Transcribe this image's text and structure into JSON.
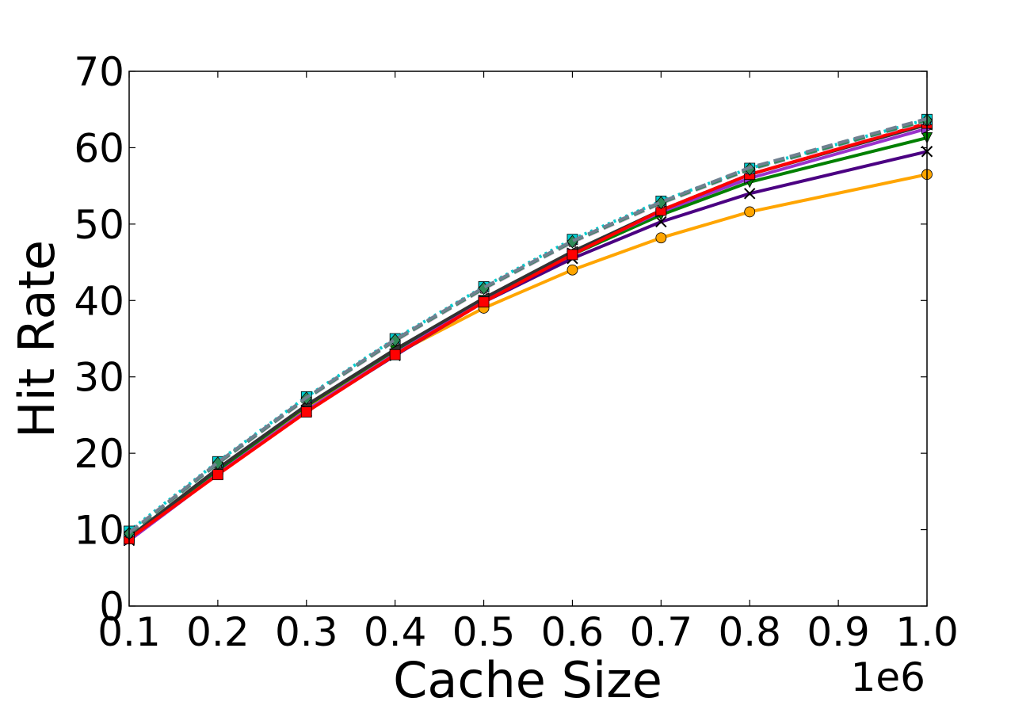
{
  "chart_data": {
    "type": "line",
    "title": "",
    "xlabel": "Cache Size",
    "ylabel": "Hit Rate",
    "x_offset_label": "1e6",
    "xlim": [
      0.1,
      1.0
    ],
    "ylim": [
      0,
      70
    ],
    "grid": false,
    "legend": "none",
    "x": [
      0.1,
      0.2,
      0.3,
      0.4,
      0.5,
      0.6,
      0.7,
      0.8,
      1.0
    ],
    "x_ticks": [
      "0.1",
      "0.2",
      "0.3",
      "0.4",
      "0.5",
      "0.6",
      "0.7",
      "0.8",
      "0.9",
      "1.0"
    ],
    "y_ticks": [
      "0",
      "10",
      "20",
      "30",
      "40",
      "50",
      "60",
      "70"
    ],
    "series": [
      {
        "color": "#ffa500",
        "marker": "circle",
        "dash": "solid",
        "values": [
          8.8,
          17.5,
          25.8,
          33.0,
          39.0,
          44.0,
          48.2,
          51.6,
          56.5
        ]
      },
      {
        "color": "#4b0082",
        "marker": "x",
        "dash": "solid",
        "values": [
          8.6,
          17.3,
          25.5,
          32.8,
          39.8,
          45.5,
          50.3,
          54.0,
          59.5
        ]
      },
      {
        "color": "#008000",
        "marker": "triangle-down",
        "dash": "solid",
        "values": [
          9.0,
          17.8,
          26.2,
          33.5,
          40.0,
          46.0,
          51.2,
          55.5,
          61.3
        ]
      },
      {
        "color": "#9932cc",
        "marker": "triangle-right",
        "dash": "solid",
        "values": [
          8.6,
          17.3,
          25.6,
          33.0,
          40.0,
          46.2,
          51.6,
          56.0,
          62.5
        ]
      },
      {
        "color": "#333333",
        "marker": "triangle-left",
        "dash": "solid",
        "values": [
          9.0,
          18.0,
          26.3,
          33.6,
          40.3,
          46.4,
          51.8,
          56.5,
          63.0
        ]
      },
      {
        "color": "#ff0000",
        "marker": "square",
        "dash": "solid",
        "values": [
          8.8,
          17.2,
          25.4,
          32.9,
          39.8,
          46.0,
          51.8,
          56.5,
          63.2
        ]
      },
      {
        "color": "#00ced1",
        "marker": "square",
        "dash": "dotted",
        "values": [
          9.8,
          18.9,
          27.4,
          35.0,
          41.8,
          48.0,
          53.0,
          57.3,
          63.7
        ]
      },
      {
        "color": "#c8a2c8",
        "marker": "pentagon",
        "dash": "dashed",
        "values": [
          9.5,
          18.6,
          27.1,
          34.7,
          41.5,
          47.6,
          52.7,
          57.1,
          63.5
        ]
      },
      {
        "color": "#2e8b57",
        "marker": "diamond",
        "dash": "dashed",
        "values": [
          9.5,
          18.7,
          27.2,
          34.8,
          41.6,
          47.7,
          52.8,
          57.2,
          63.6
        ]
      },
      {
        "color": "#708090",
        "marker": "none",
        "dash": "dashed",
        "values": [
          9.6,
          18.8,
          27.3,
          34.9,
          41.7,
          47.8,
          52.9,
          57.4,
          63.8
        ]
      }
    ]
  }
}
